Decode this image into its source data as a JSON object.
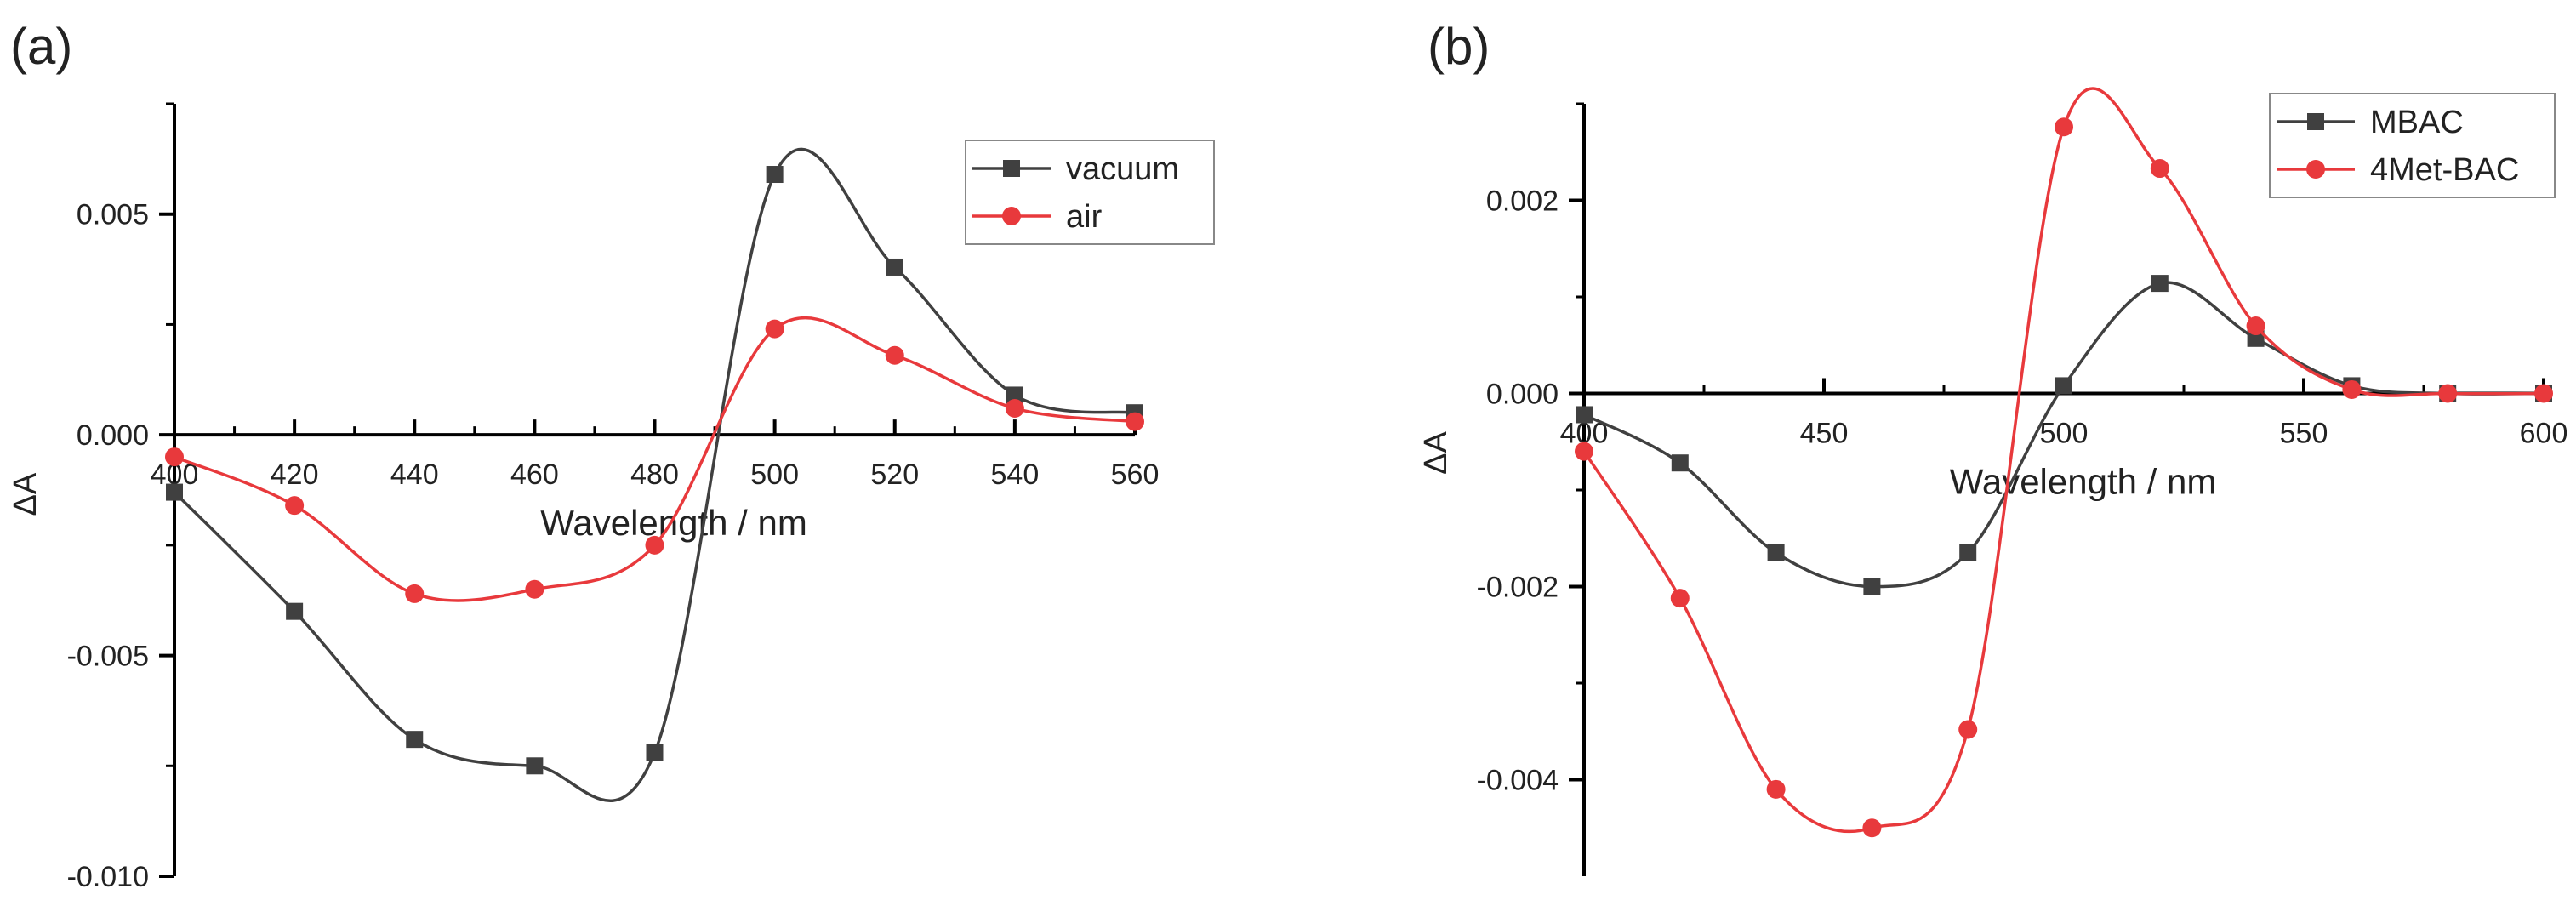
{
  "colors": {
    "series_dark": "#404040",
    "series_red": "#e8393c",
    "axis": "#000000"
  },
  "chart_data": [
    {
      "panel_label": "(a)",
      "type": "line",
      "xlabel": "Wavelength / nm",
      "ylabel": "ΔA",
      "xlim": [
        400,
        560
      ],
      "ylim": [
        -0.01,
        0.0075
      ],
      "xticks": [
        400,
        420,
        440,
        460,
        480,
        500,
        520,
        540,
        560
      ],
      "xtick_labels": [
        "400",
        "420",
        "440",
        "460",
        "480",
        "500",
        "520",
        "540",
        "560"
      ],
      "yticks": [
        -0.01,
        -0.005,
        0.0,
        0.005
      ],
      "ytick_labels": [
        "-0.010",
        "-0.005",
        "0.000",
        "0.005"
      ],
      "legend_position": "top-right",
      "series": [
        {
          "name": "vacuum",
          "marker": "square",
          "color": "#404040",
          "x": [
            400,
            420,
            440,
            460,
            480,
            500,
            520,
            540,
            560
          ],
          "y": [
            -0.0013,
            -0.004,
            -0.0069,
            -0.0075,
            -0.0072,
            0.0059,
            0.0038,
            0.0009,
            0.0005
          ]
        },
        {
          "name": "air",
          "marker": "circle",
          "color": "#e8393c",
          "x": [
            400,
            420,
            440,
            460,
            480,
            500,
            520,
            540,
            560
          ],
          "y": [
            -0.0005,
            -0.0016,
            -0.0036,
            -0.0035,
            -0.0025,
            0.0024,
            0.0018,
            0.0006,
            0.0003
          ]
        }
      ]
    },
    {
      "panel_label": "(b)",
      "type": "line",
      "xlabel": "Wavelength / nm",
      "ylabel": "ΔA",
      "xlim": [
        400,
        600
      ],
      "ylim": [
        -0.005,
        0.003
      ],
      "xticks": [
        400,
        450,
        500,
        550,
        600
      ],
      "xtick_labels": [
        "400",
        "450",
        "500",
        "550",
        "600"
      ],
      "yticks": [
        -0.004,
        -0.002,
        0.0,
        0.002
      ],
      "ytick_labels": [
        "-0.004",
        "-0.002",
        "0.000",
        "0.002"
      ],
      "legend_position": "top-right",
      "series": [
        {
          "name": "MBAC",
          "marker": "square",
          "color": "#404040",
          "x": [
            400,
            420,
            440,
            460,
            480,
            500,
            520,
            540,
            560,
            580,
            600
          ],
          "y": [
            -0.00022,
            -0.00072,
            -0.00165,
            -0.002,
            -0.00165,
            8e-05,
            0.00114,
            0.00057,
            8e-05,
            0.0,
            0.0
          ]
        },
        {
          "name": "4Met-BAC",
          "marker": "circle",
          "color": "#e8393c",
          "x": [
            400,
            420,
            440,
            460,
            480,
            500,
            520,
            540,
            560,
            580,
            600
          ],
          "y": [
            -0.0006,
            -0.00212,
            -0.0041,
            -0.0045,
            -0.00348,
            0.00276,
            0.00233,
            0.0007,
            4e-05,
            0.0,
            0.0
          ]
        }
      ]
    }
  ]
}
